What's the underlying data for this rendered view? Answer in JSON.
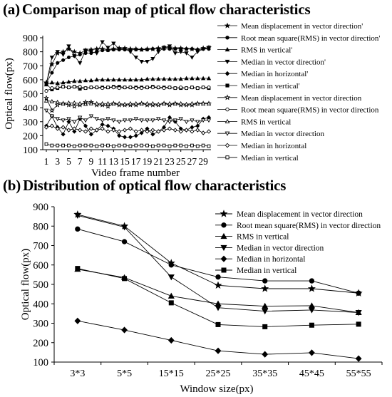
{
  "panel_a": {
    "letter": "(a)",
    "title": "Comparison map of ptical flow characteristics"
  },
  "panel_b": {
    "letter": "(b)",
    "title": "Distribution of optical flow characteristics"
  },
  "chart_data": [
    {
      "type": "line",
      "title": "Comparison map of ptical flow characteristics",
      "xlabel": "Video frame number",
      "ylabel": "Optical flow(px)",
      "x": [
        1,
        2,
        3,
        4,
        5,
        6,
        7,
        8,
        9,
        10,
        11,
        12,
        13,
        14,
        15,
        16,
        17,
        18,
        19,
        20,
        21,
        22,
        23,
        24,
        25,
        26,
        27,
        28,
        29,
        30
      ],
      "xtick_labels": [
        "1",
        "3",
        "5",
        "7",
        "9",
        "11",
        "13",
        "15",
        "17",
        "19",
        "21",
        "23",
        "25",
        "27",
        "29"
      ],
      "xtick_values": [
        1,
        3,
        5,
        7,
        9,
        11,
        13,
        15,
        17,
        19,
        21,
        23,
        25,
        27,
        29
      ],
      "ylim": [
        100,
        900
      ],
      "yticks": [
        100,
        200,
        300,
        400,
        500,
        600,
        700,
        800,
        900
      ],
      "legend_position": "right",
      "series": [
        {
          "name": "Mean displacement in vector direction'",
          "marker": "star",
          "values": [
            580,
            710,
            790,
            800,
            820,
            800,
            790,
            810,
            815,
            820,
            820,
            815,
            820,
            825,
            825,
            820,
            820,
            815,
            820,
            820,
            825,
            830,
            830,
            825,
            825,
            820,
            820,
            815,
            825,
            830
          ]
        },
        {
          "name": "Root mean square(RMS) in vector direction'",
          "marker": "circle",
          "values": [
            575,
            650,
            720,
            740,
            760,
            770,
            780,
            790,
            790,
            800,
            810,
            810,
            815,
            815,
            815,
            815,
            815,
            815,
            815,
            820,
            820,
            820,
            820,
            820,
            820,
            820,
            820,
            815,
            820,
            820
          ]
        },
        {
          "name": "RMS in vertical'",
          "marker": "triangle",
          "values": [
            565,
            580,
            575,
            580,
            585,
            590,
            590,
            595,
            595,
            600,
            600,
            600,
            600,
            600,
            600,
            600,
            600,
            600,
            605,
            605,
            605,
            605,
            605,
            605,
            605,
            610,
            610,
            610,
            610,
            610
          ]
        },
        {
          "name": "Median in vector direction'",
          "marker": "triangle-down",
          "values": [
            570,
            760,
            800,
            780,
            840,
            770,
            720,
            810,
            800,
            790,
            870,
            830,
            860,
            820,
            820,
            800,
            760,
            730,
            730,
            750,
            800,
            830,
            840,
            790,
            800,
            790,
            760,
            800,
            820,
            830
          ]
        },
        {
          "name": "Median in horizontal'",
          "marker": "diamond",
          "values": [
            270,
            340,
            260,
            210,
            300,
            230,
            320,
            270,
            210,
            240,
            280,
            270,
            250,
            200,
            190,
            190,
            200,
            220,
            250,
            210,
            230,
            260,
            330,
            300,
            250,
            240,
            260,
            270,
            320,
            330
          ]
        },
        {
          "name": "Median in vertical'",
          "marker": "square",
          "values": [
            570,
            530,
            540,
            550,
            545,
            550,
            535,
            540,
            545,
            545,
            545,
            545,
            550,
            550,
            545,
            545,
            545,
            545,
            545,
            550,
            545,
            545,
            545,
            540,
            540,
            540,
            545,
            540,
            545,
            540
          ]
        },
        {
          "name": "Mean displacement in vector direction",
          "marker": "star-open",
          "values": [
            470,
            380,
            420,
            430,
            420,
            410,
            420,
            440,
            440,
            420,
            420,
            410,
            430,
            420,
            420,
            420,
            420,
            430,
            420,
            420,
            420,
            430,
            420,
            430,
            420,
            420,
            420,
            430,
            430,
            430
          ]
        },
        {
          "name": "Root mean square(RMS) in vector direction",
          "marker": "circle-open",
          "values": [
            520,
            540,
            545,
            550,
            545,
            550,
            550,
            540,
            545,
            545,
            540,
            545,
            545,
            540,
            545,
            545,
            540,
            540,
            545,
            545,
            545,
            540,
            545,
            540,
            545,
            540,
            545,
            540,
            545,
            545
          ]
        },
        {
          "name": "RMS in vertical",
          "marker": "triangle-open",
          "values": [
            450,
            445,
            440,
            430,
            435,
            435,
            430,
            425,
            430,
            430,
            430,
            430,
            430,
            430,
            425,
            430,
            430,
            430,
            430,
            430,
            425,
            430,
            430,
            430,
            430,
            425,
            430,
            430,
            430,
            430
          ]
        },
        {
          "name": "Median in vector direction",
          "marker": "triangle-down-open",
          "values": [
            380,
            340,
            320,
            310,
            320,
            300,
            330,
            310,
            340,
            320,
            310,
            320,
            310,
            300,
            310,
            310,
            320,
            310,
            310,
            310,
            320,
            310,
            300,
            310,
            320,
            300,
            310,
            300,
            310,
            310
          ]
        },
        {
          "name": "Median in horizontal",
          "marker": "diamond-open",
          "values": [
            260,
            270,
            250,
            260,
            240,
            250,
            240,
            230,
            250,
            240,
            250,
            230,
            240,
            230,
            240,
            250,
            230,
            240,
            230,
            240,
            230,
            240,
            250,
            240,
            230,
            240,
            230,
            240,
            220,
            230
          ]
        },
        {
          "name": "Median in vertical",
          "marker": "square-open",
          "values": [
            140,
            130,
            130,
            130,
            130,
            125,
            130,
            130,
            130,
            125,
            130,
            130,
            125,
            130,
            130,
            125,
            130,
            130,
            130,
            125,
            130,
            130,
            125,
            130,
            130,
            125,
            130,
            125,
            130,
            125
          ]
        }
      ]
    },
    {
      "type": "line",
      "title": "Distribution of optical flow characteristics",
      "xlabel": "Window size(px)",
      "ylabel": "Optical flow(px)",
      "categories": [
        "3*3",
        "5*5",
        "15*15",
        "25*25",
        "35*35",
        "45*45",
        "55*55"
      ],
      "ylim": [
        100,
        900
      ],
      "yticks": [
        100,
        200,
        300,
        400,
        500,
        600,
        700,
        800,
        900
      ],
      "legend_position": "top-right",
      "series": [
        {
          "name": "Mean displacement in vector direction",
          "marker": "star",
          "values": [
            860,
            800,
            610,
            495,
            478,
            478,
            455
          ]
        },
        {
          "name": "Root mean square(RMS) in vector direction",
          "marker": "circle",
          "values": [
            785,
            720,
            600,
            538,
            518,
            518,
            455
          ]
        },
        {
          "name": "RMS in vertical",
          "marker": "triangle",
          "values": [
            578,
            535,
            440,
            400,
            388,
            390,
            355
          ]
        },
        {
          "name": "Median in vector direction",
          "marker": "triangle-down",
          "values": [
            855,
            795,
            538,
            380,
            362,
            368,
            355
          ]
        },
        {
          "name": "Median in horizontal",
          "marker": "diamond",
          "values": [
            312,
            265,
            212,
            158,
            140,
            148,
            118
          ]
        },
        {
          "name": "Median in vertical",
          "marker": "square",
          "values": [
            582,
            530,
            405,
            293,
            282,
            290,
            295
          ]
        }
      ]
    }
  ]
}
